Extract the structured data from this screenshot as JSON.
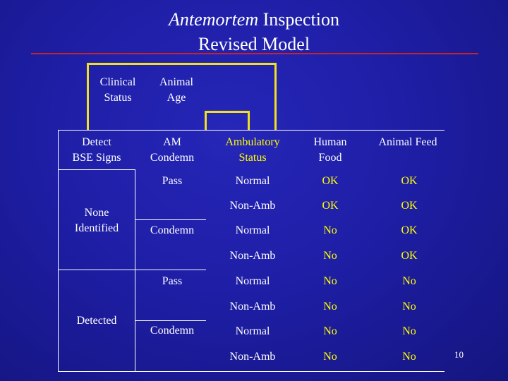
{
  "title": {
    "line1_italic": "Antemortem",
    "line1_rest": " Inspection",
    "line2": "Revised Model"
  },
  "inputs": {
    "clinical_status": [
      "Clinical",
      "Status"
    ],
    "animal_age": [
      "Animal",
      "Age"
    ]
  },
  "headers": {
    "detect": [
      "Detect",
      "BSE Signs"
    ],
    "am_condemn": [
      "AM",
      "Condemn"
    ],
    "ambulatory": [
      "Ambulatory",
      "Status"
    ],
    "human_food": [
      "Human",
      "Food"
    ],
    "animal_feed": "Animal Feed"
  },
  "detect_groups": [
    "None",
    "Identified",
    "Detected"
  ],
  "am_values": [
    "Pass",
    "Condemn",
    "Pass",
    "Condemn"
  ],
  "rows": [
    {
      "ambulatory": "Normal",
      "human": "OK",
      "feed": "OK"
    },
    {
      "ambulatory": "Non-Amb",
      "human": "OK",
      "feed": "OK"
    },
    {
      "ambulatory": "Normal",
      "human": "No",
      "feed": "OK"
    },
    {
      "ambulatory": "Non-Amb",
      "human": "No",
      "feed": "OK"
    },
    {
      "ambulatory": "Normal",
      "human": "No",
      "feed": "No"
    },
    {
      "ambulatory": "Non-Amb",
      "human": "No",
      "feed": "No"
    },
    {
      "ambulatory": "Normal",
      "human": "No",
      "feed": "No"
    },
    {
      "ambulatory": "Non-Amb",
      "human": "No",
      "feed": "No"
    }
  ],
  "page_number": "10",
  "colors": {
    "background": "#1c1c9c",
    "highlight_text": "#ffff00",
    "connector": "#f0e020",
    "title_rule": "#cc2222"
  }
}
